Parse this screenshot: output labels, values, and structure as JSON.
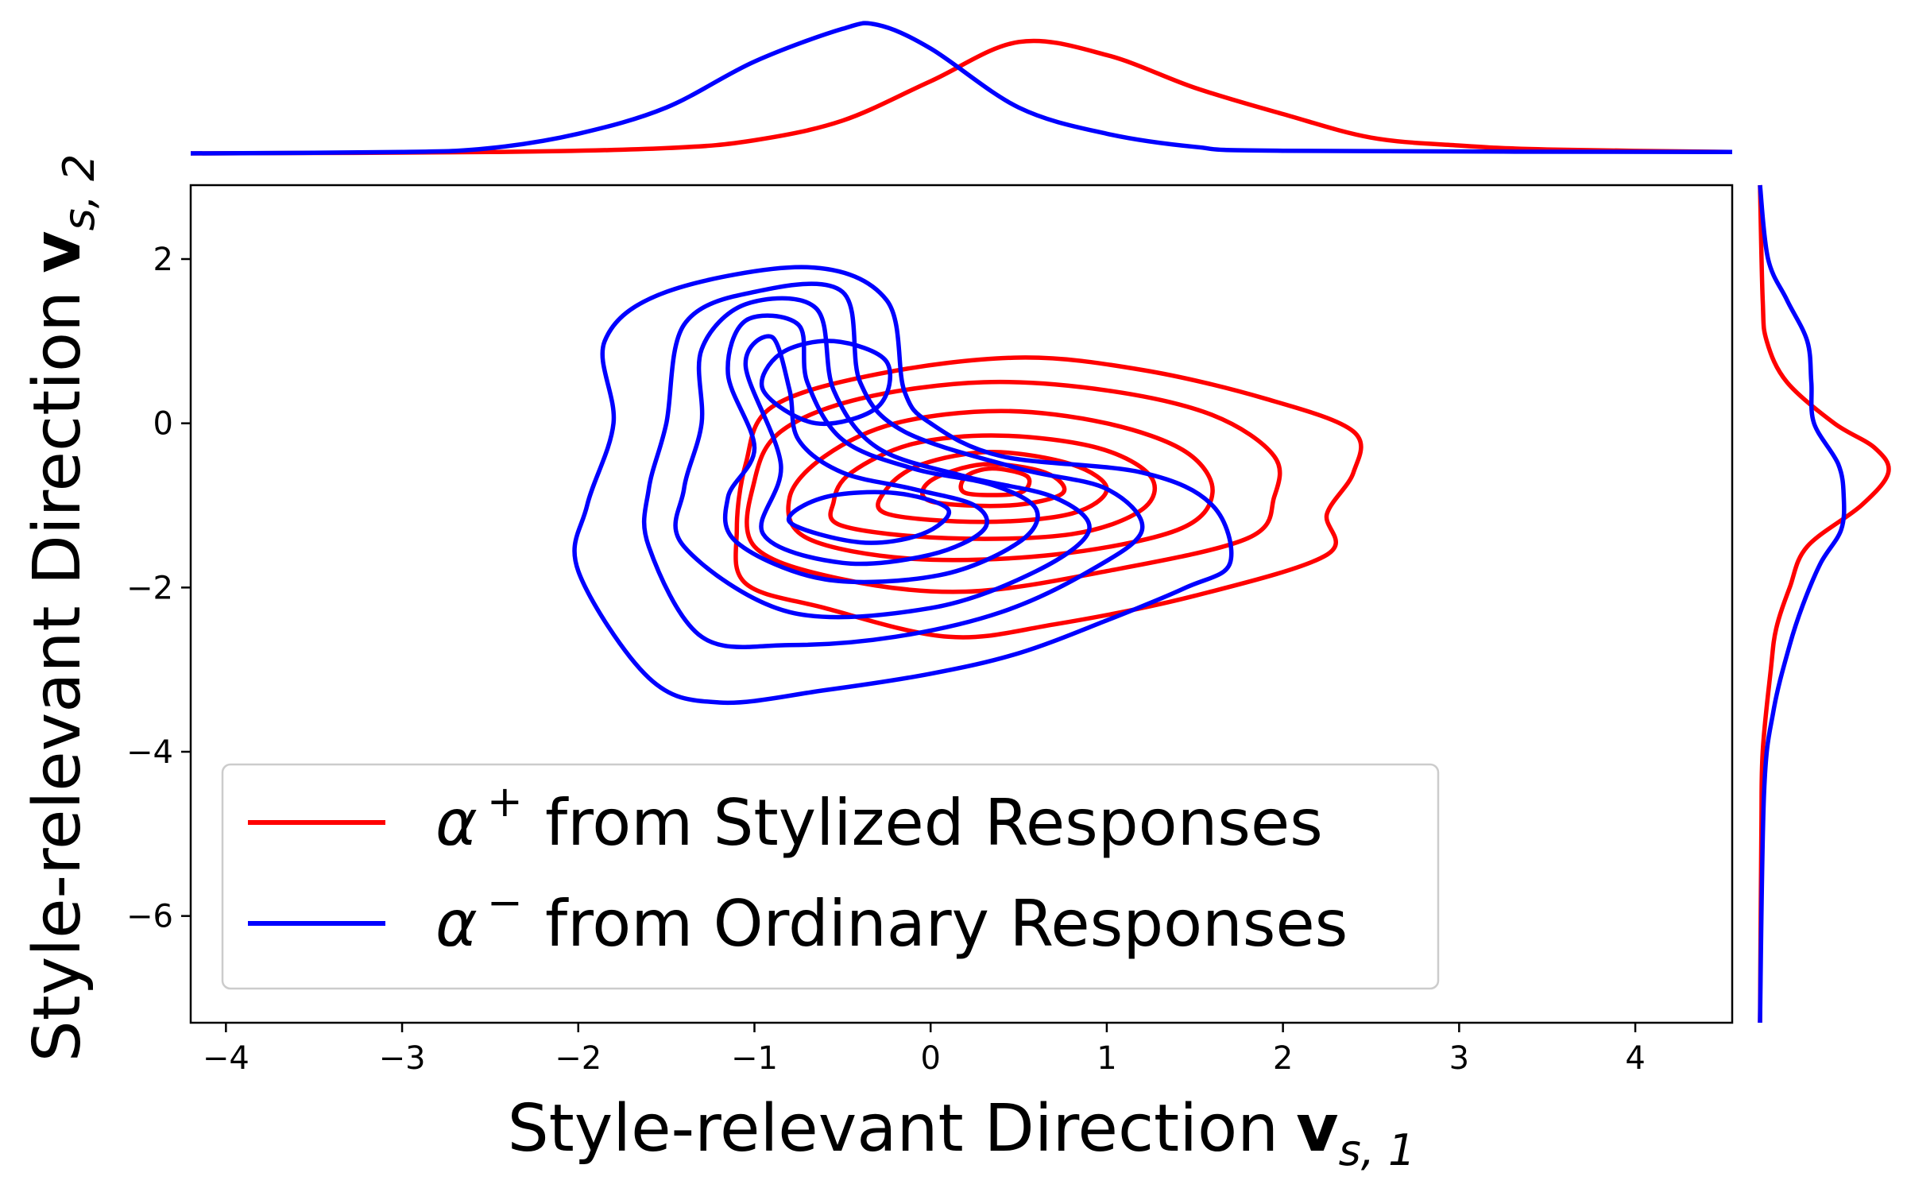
{
  "chart_data": {
    "type": "kde-contour-joint",
    "xlabel": "Style-relevant Direction",
    "ylabel": "Style-relevant Direction",
    "xlabel_math": {
      "base": "v",
      "sub": "s, 1"
    },
    "ylabel_math": {
      "base": "v",
      "sub": "s, 2"
    },
    "xlim": [
      -4.2,
      4.55
    ],
    "ylim": [
      -7.3,
      2.9
    ],
    "xticks": [
      -4,
      -3,
      -2,
      -1,
      0,
      1,
      2,
      3,
      4
    ],
    "yticks": [
      2,
      0,
      -2,
      -4,
      -6
    ],
    "xtick_labels": [
      "−4",
      "−3",
      "−2",
      "−1",
      "0",
      "1",
      "2",
      "3",
      "4"
    ],
    "ytick_labels": [
      "2",
      "0",
      "−2",
      "−4",
      "−6"
    ],
    "grid": false,
    "legend_position": "lower-left",
    "series": [
      {
        "name": "from Stylized Responses",
        "symbol": "α",
        "superscript": "+",
        "color": "#ff0000",
        "center": [
          0.45,
          -0.6
        ],
        "contour_levels": 7,
        "contours": [
          [
            [
              -1.05,
              -1.95
            ],
            [
              -0.6,
              -2.25
            ],
            [
              0.1,
              -2.6
            ],
            [
              0.7,
              -2.45
            ],
            [
              1.5,
              -2.1
            ],
            [
              2.25,
              -1.6
            ],
            [
              2.25,
              -1.1
            ],
            [
              2.4,
              -0.6
            ],
            [
              2.4,
              -0.1
            ],
            [
              1.9,
              0.3
            ],
            [
              1.2,
              0.65
            ],
            [
              0.5,
              0.8
            ],
            [
              -0.3,
              0.6
            ],
            [
              -0.9,
              0.2
            ],
            [
              -1.05,
              -0.5
            ],
            [
              -1.1,
              -1.3
            ]
          ],
          [
            [
              -1.0,
              -1.5
            ],
            [
              -0.5,
              -1.9
            ],
            [
              0.2,
              -2.05
            ],
            [
              1.0,
              -1.8
            ],
            [
              1.8,
              -1.4
            ],
            [
              1.95,
              -0.9
            ],
            [
              1.95,
              -0.4
            ],
            [
              1.6,
              0.1
            ],
            [
              1.0,
              0.4
            ],
            [
              0.3,
              0.5
            ],
            [
              -0.4,
              0.3
            ],
            [
              -0.85,
              -0.1
            ],
            [
              -1.0,
              -0.7
            ]
          ],
          [
            [
              -0.7,
              -1.4
            ],
            [
              -0.1,
              -1.65
            ],
            [
              0.7,
              -1.6
            ],
            [
              1.4,
              -1.3
            ],
            [
              1.6,
              -0.85
            ],
            [
              1.45,
              -0.35
            ],
            [
              1.0,
              0.0
            ],
            [
              0.4,
              0.15
            ],
            [
              -0.2,
              0.0
            ],
            [
              -0.6,
              -0.4
            ],
            [
              -0.8,
              -0.9
            ]
          ],
          [
            [
              -0.5,
              -1.25
            ],
            [
              0.1,
              -1.4
            ],
            [
              0.8,
              -1.35
            ],
            [
              1.2,
              -1.05
            ],
            [
              1.25,
              -0.65
            ],
            [
              0.95,
              -0.3
            ],
            [
              0.4,
              -0.15
            ],
            [
              -0.1,
              -0.25
            ],
            [
              -0.45,
              -0.6
            ],
            [
              -0.55,
              -0.95
            ]
          ],
          [
            [
              -0.25,
              -1.1
            ],
            [
              0.3,
              -1.2
            ],
            [
              0.8,
              -1.1
            ],
            [
              1.0,
              -0.8
            ],
            [
              0.8,
              -0.5
            ],
            [
              0.35,
              -0.35
            ],
            [
              -0.05,
              -0.5
            ],
            [
              -0.25,
              -0.8
            ]
          ],
          [
            [
              0.0,
              -0.95
            ],
            [
              0.45,
              -1.0
            ],
            [
              0.75,
              -0.85
            ],
            [
              0.65,
              -0.6
            ],
            [
              0.3,
              -0.5
            ],
            [
              0.0,
              -0.7
            ]
          ],
          [
            [
              0.2,
              -0.85
            ],
            [
              0.5,
              -0.85
            ],
            [
              0.55,
              -0.65
            ],
            [
              0.35,
              -0.55
            ],
            [
              0.2,
              -0.65
            ]
          ]
        ],
        "marginal_x": [
          [
            -4.2,
            0.0
          ],
          [
            -2.5,
            0.01
          ],
          [
            -1.5,
            0.04
          ],
          [
            -1.0,
            0.1
          ],
          [
            -0.5,
            0.25
          ],
          [
            0.0,
            0.55
          ],
          [
            0.5,
            0.85
          ],
          [
            1.0,
            0.75
          ],
          [
            1.5,
            0.5
          ],
          [
            2.0,
            0.3
          ],
          [
            2.5,
            0.12
          ],
          [
            3.0,
            0.06
          ],
          [
            3.5,
            0.03
          ],
          [
            4.55,
            0.01
          ]
        ],
        "marginal_y": [
          [
            2.9,
            0.0
          ],
          [
            1.5,
            0.02
          ],
          [
            1.0,
            0.05
          ],
          [
            0.5,
            0.2
          ],
          [
            0.0,
            0.55
          ],
          [
            -0.3,
            0.85
          ],
          [
            -0.6,
            0.95
          ],
          [
            -1.0,
            0.75
          ],
          [
            -1.5,
            0.35
          ],
          [
            -2.0,
            0.22
          ],
          [
            -2.5,
            0.12
          ],
          [
            -3.0,
            0.08
          ],
          [
            -4.0,
            0.02
          ],
          [
            -5.0,
            0.01
          ],
          [
            -7.3,
            0.0
          ]
        ]
      },
      {
        "name": "from Ordinary Responses",
        "symbol": "α",
        "superscript": "−",
        "color": "#0000ff",
        "center": [
          -0.55,
          0.75
        ],
        "contour_levels": 7,
        "contours": [
          [
            [
              -2.0,
              -1.8
            ],
            [
              -1.6,
              -3.1
            ],
            [
              -1.2,
              -3.4
            ],
            [
              -0.6,
              -3.25
            ],
            [
              0.0,
              -3.05
            ],
            [
              0.5,
              -2.8
            ],
            [
              1.0,
              -2.4
            ],
            [
              1.45,
              -2.0
            ],
            [
              1.7,
              -1.7
            ],
            [
              1.6,
              -1.0
            ],
            [
              1.2,
              -0.6
            ],
            [
              0.4,
              -0.4
            ],
            [
              0.0,
              0.0
            ],
            [
              -0.15,
              0.4
            ],
            [
              -0.25,
              1.5
            ],
            [
              -0.7,
              1.9
            ],
            [
              -1.5,
              1.6
            ],
            [
              -1.85,
              1.0
            ],
            [
              -1.8,
              0.0
            ],
            [
              -1.95,
              -1.0
            ]
          ],
          [
            [
              -1.6,
              -1.5
            ],
            [
              -1.3,
              -2.6
            ],
            [
              -0.8,
              -2.7
            ],
            [
              -0.2,
              -2.6
            ],
            [
              0.4,
              -2.3
            ],
            [
              0.9,
              -1.8
            ],
            [
              1.2,
              -1.3
            ],
            [
              1.0,
              -0.8
            ],
            [
              0.5,
              -0.55
            ],
            [
              -0.15,
              -0.1
            ],
            [
              -0.4,
              0.5
            ],
            [
              -0.5,
              1.6
            ],
            [
              -1.0,
              1.6
            ],
            [
              -1.4,
              1.2
            ],
            [
              -1.5,
              0.0
            ],
            [
              -1.6,
              -0.8
            ]
          ],
          [
            [
              -1.4,
              -1.5
            ],
            [
              -0.8,
              -2.3
            ],
            [
              0.0,
              -2.25
            ],
            [
              0.6,
              -1.8
            ],
            [
              0.9,
              -1.3
            ],
            [
              0.7,
              -0.9
            ],
            [
              0.2,
              -0.65
            ],
            [
              -0.3,
              -0.3
            ],
            [
              -0.55,
              0.4
            ],
            [
              -0.65,
              1.4
            ],
            [
              -1.05,
              1.45
            ],
            [
              -1.3,
              0.9
            ],
            [
              -1.3,
              0.0
            ],
            [
              -1.4,
              -0.8
            ]
          ],
          [
            [
              -1.1,
              -1.45
            ],
            [
              -0.6,
              -1.9
            ],
            [
              0.05,
              -1.85
            ],
            [
              0.5,
              -1.45
            ],
            [
              0.6,
              -1.05
            ],
            [
              0.35,
              -0.75
            ],
            [
              -0.1,
              -0.55
            ],
            [
              -0.5,
              -0.2
            ],
            [
              -0.7,
              0.5
            ],
            [
              -0.75,
              1.2
            ],
            [
              -1.05,
              1.25
            ],
            [
              -1.15,
              0.6
            ],
            [
              -1.0,
              -0.3
            ],
            [
              -1.15,
              -0.9
            ]
          ],
          [
            [
              -0.95,
              -1.35
            ],
            [
              -0.5,
              -1.7
            ],
            [
              0.0,
              -1.6
            ],
            [
              0.3,
              -1.3
            ],
            [
              0.25,
              -1.0
            ],
            [
              -0.1,
              -0.8
            ],
            [
              -0.5,
              -0.6
            ],
            [
              -0.75,
              -0.2
            ],
            [
              -0.8,
              0.4
            ],
            [
              -0.9,
              1.05
            ],
            [
              -1.05,
              0.7
            ],
            [
              -0.85,
              -0.5
            ]
          ],
          [
            [
              -0.8,
              -1.2
            ],
            [
              -0.4,
              -1.45
            ],
            [
              -0.05,
              -1.35
            ],
            [
              0.1,
              -1.05
            ],
            [
              -0.2,
              -0.85
            ],
            [
              -0.6,
              -0.9
            ]
          ],
          [
            [
              -0.95,
              0.4
            ],
            [
              -0.65,
              0.0
            ],
            [
              -0.3,
              0.2
            ],
            [
              -0.25,
              0.75
            ],
            [
              -0.55,
              1.0
            ],
            [
              -0.85,
              0.85
            ]
          ]
        ],
        "marginal_x": [
          [
            -4.2,
            0.0
          ],
          [
            -3.0,
            0.01
          ],
          [
            -2.5,
            0.04
          ],
          [
            -2.0,
            0.15
          ],
          [
            -1.5,
            0.35
          ],
          [
            -1.0,
            0.7
          ],
          [
            -0.5,
            0.95
          ],
          [
            -0.3,
            0.98
          ],
          [
            0.0,
            0.8
          ],
          [
            0.5,
            0.35
          ],
          [
            1.0,
            0.15
          ],
          [
            1.5,
            0.05
          ],
          [
            2.0,
            0.02
          ],
          [
            4.55,
            0.01
          ]
        ],
        "marginal_y": [
          [
            2.9,
            0.0
          ],
          [
            2.0,
            0.06
          ],
          [
            1.5,
            0.2
          ],
          [
            1.0,
            0.35
          ],
          [
            0.5,
            0.38
          ],
          [
            0.0,
            0.4
          ],
          [
            -0.5,
            0.58
          ],
          [
            -0.9,
            0.62
          ],
          [
            -1.3,
            0.6
          ],
          [
            -1.7,
            0.45
          ],
          [
            -2.2,
            0.32
          ],
          [
            -2.7,
            0.22
          ],
          [
            -3.5,
            0.1
          ],
          [
            -4.5,
            0.03
          ],
          [
            -7.3,
            0.0
          ]
        ]
      }
    ]
  }
}
